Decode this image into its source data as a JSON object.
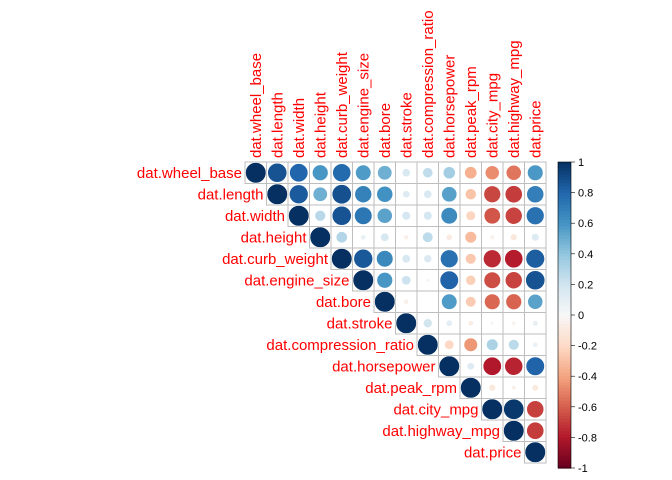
{
  "chart_data": {
    "type": "heatmap",
    "style": "corrplot-upper-circle",
    "variables": [
      "dat.wheel_base",
      "dat.length",
      "dat.width",
      "dat.height",
      "dat.curb_weight",
      "dat.engine_size",
      "dat.bore",
      "dat.stroke",
      "dat.compression_ratio",
      "dat.horsepower",
      "dat.peak_rpm",
      "dat.city_mpg",
      "dat.highway_mpg",
      "dat.price"
    ],
    "matrix": [
      [
        1.0,
        0.87,
        0.8,
        0.59,
        0.78,
        0.57,
        0.49,
        0.16,
        0.25,
        0.35,
        -0.36,
        -0.47,
        -0.54,
        0.58
      ],
      [
        0.87,
        1.0,
        0.84,
        0.49,
        0.88,
        0.68,
        0.61,
        0.13,
        0.16,
        0.55,
        -0.29,
        -0.67,
        -0.7,
        0.69
      ],
      [
        0.8,
        0.84,
        1.0,
        0.28,
        0.87,
        0.73,
        0.54,
        0.18,
        0.18,
        0.64,
        -0.22,
        -0.63,
        -0.68,
        0.75
      ],
      [
        0.59,
        0.49,
        0.28,
        1.0,
        0.3,
        0.07,
        0.17,
        -0.06,
        0.26,
        -0.09,
        -0.32,
        -0.05,
        -0.11,
        0.14
      ],
      [
        0.78,
        0.88,
        0.87,
        0.3,
        1.0,
        0.85,
        0.65,
        0.17,
        0.15,
        0.75,
        -0.27,
        -0.75,
        -0.79,
        0.83
      ],
      [
        0.57,
        0.68,
        0.73,
        0.07,
        0.85,
        1.0,
        0.59,
        0.21,
        0.03,
        0.81,
        -0.24,
        -0.65,
        -0.68,
        0.87
      ],
      [
        0.49,
        0.61,
        0.54,
        0.17,
        0.65,
        0.59,
        1.0,
        -0.06,
        0.0,
        0.57,
        -0.26,
        -0.58,
        -0.59,
        0.54
      ],
      [
        0.16,
        0.13,
        0.18,
        -0.06,
        0.17,
        0.21,
        -0.06,
        1.0,
        0.19,
        0.1,
        -0.07,
        -0.03,
        -0.04,
        0.08
      ],
      [
        0.25,
        0.16,
        0.18,
        0.26,
        0.15,
        0.03,
        0.0,
        0.19,
        1.0,
        -0.21,
        -0.44,
        0.32,
        0.27,
        0.07
      ],
      [
        0.35,
        0.55,
        0.64,
        -0.09,
        0.75,
        0.81,
        0.57,
        0.1,
        -0.21,
        1.0,
        0.13,
        -0.8,
        -0.77,
        0.81
      ],
      [
        -0.36,
        -0.29,
        -0.22,
        -0.32,
        -0.27,
        -0.24,
        -0.26,
        -0.07,
        -0.44,
        0.13,
        1.0,
        -0.11,
        -0.05,
        -0.1
      ],
      [
        -0.47,
        -0.67,
        -0.63,
        -0.05,
        -0.75,
        -0.65,
        -0.58,
        -0.03,
        0.32,
        -0.8,
        -0.11,
        1.0,
        0.97,
        -0.69
      ],
      [
        -0.54,
        -0.7,
        -0.68,
        -0.11,
        -0.79,
        -0.68,
        -0.59,
        -0.04,
        0.27,
        -0.77,
        -0.05,
        0.97,
        1.0,
        -0.7
      ],
      [
        0.58,
        0.69,
        0.75,
        0.14,
        0.83,
        0.87,
        0.54,
        0.08,
        0.07,
        0.81,
        -0.1,
        -0.69,
        -0.7,
        1.0
      ]
    ],
    "colorbar": {
      "ticks": [
        "1",
        "0.8",
        "0.6",
        "0.4",
        "0.2",
        "0",
        "-0.2",
        "-0.4",
        "-0.6",
        "-0.8",
        "-1"
      ],
      "range": [
        -1,
        1
      ],
      "low_color": "#67001F",
      "mid_color": "#F7F7F7",
      "high_color": "#053061"
    },
    "label_color": "#FF0000"
  }
}
